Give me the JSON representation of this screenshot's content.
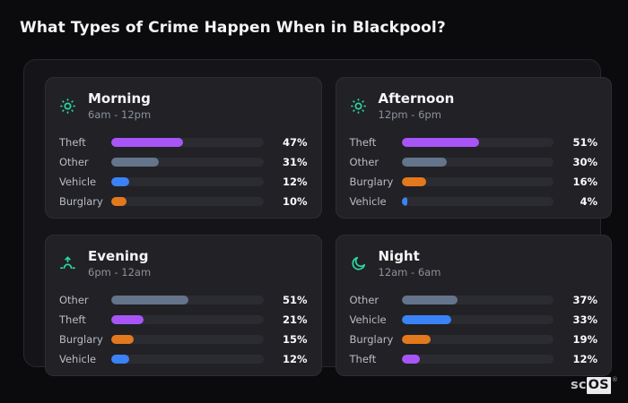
{
  "page_title": "What Types of Crime Happen When in Blackpool?",
  "logo": {
    "prefix": "sc",
    "suffix": "OS",
    "registered": "®"
  },
  "colors": {
    "page_bg": "#0b0b0e",
    "panel_bg": "#151519",
    "card_bg": "#212126",
    "track_bg": "#2b2b32",
    "accent_icon": "#2dd4a0",
    "theft": "#a855f7",
    "other": "#64748b",
    "vehicle": "#3b82f6",
    "burglary": "#e2791d"
  },
  "cards": [
    {
      "title": "Morning",
      "time_range": "6am - 12pm",
      "icon": "sun-icon",
      "bars": [
        {
          "label": "Theft",
          "value": 47,
          "display": "47%",
          "color": "#a855f7"
        },
        {
          "label": "Other",
          "value": 31,
          "display": "31%",
          "color": "#64748b"
        },
        {
          "label": "Vehicle",
          "value": 12,
          "display": "12%",
          "color": "#3b82f6"
        },
        {
          "label": "Burglary",
          "value": 10,
          "display": "10%",
          "color": "#e2791d"
        }
      ]
    },
    {
      "title": "Afternoon",
      "time_range": "12pm - 6pm",
      "icon": "sun-icon",
      "bars": [
        {
          "label": "Theft",
          "value": 51,
          "display": "51%",
          "color": "#a855f7"
        },
        {
          "label": "Other",
          "value": 30,
          "display": "30%",
          "color": "#64748b"
        },
        {
          "label": "Burglary",
          "value": 16,
          "display": "16%",
          "color": "#e2791d"
        },
        {
          "label": "Vehicle",
          "value": 4,
          "display": "4%",
          "color": "#3b82f6"
        }
      ]
    },
    {
      "title": "Evening",
      "time_range": "6pm - 12am",
      "icon": "sunrise-icon",
      "bars": [
        {
          "label": "Other",
          "value": 51,
          "display": "51%",
          "color": "#64748b"
        },
        {
          "label": "Theft",
          "value": 21,
          "display": "21%",
          "color": "#a855f7"
        },
        {
          "label": "Burglary",
          "value": 15,
          "display": "15%",
          "color": "#e2791d"
        },
        {
          "label": "Vehicle",
          "value": 12,
          "display": "12%",
          "color": "#3b82f6"
        }
      ]
    },
    {
      "title": "Night",
      "time_range": "12am - 6am",
      "icon": "moon-icon",
      "bars": [
        {
          "label": "Other",
          "value": 37,
          "display": "37%",
          "color": "#64748b"
        },
        {
          "label": "Vehicle",
          "value": 33,
          "display": "33%",
          "color": "#3b82f6"
        },
        {
          "label": "Burglary",
          "value": 19,
          "display": "19%",
          "color": "#e2791d"
        },
        {
          "label": "Theft",
          "value": 12,
          "display": "12%",
          "color": "#a855f7"
        }
      ]
    }
  ],
  "chart_data": [
    {
      "type": "bar",
      "orientation": "horizontal",
      "title": "Morning",
      "subtitle": "6am - 12pm",
      "categories": [
        "Theft",
        "Other",
        "Vehicle",
        "Burglary"
      ],
      "values": [
        47,
        31,
        12,
        10
      ],
      "unit": "%",
      "xlim": [
        0,
        100
      ],
      "grid": false,
      "legend": false
    },
    {
      "type": "bar",
      "orientation": "horizontal",
      "title": "Afternoon",
      "subtitle": "12pm - 6pm",
      "categories": [
        "Theft",
        "Other",
        "Burglary",
        "Vehicle"
      ],
      "values": [
        51,
        30,
        16,
        4
      ],
      "unit": "%",
      "xlim": [
        0,
        100
      ],
      "grid": false,
      "legend": false
    },
    {
      "type": "bar",
      "orientation": "horizontal",
      "title": "Evening",
      "subtitle": "6pm - 12am",
      "categories": [
        "Other",
        "Theft",
        "Burglary",
        "Vehicle"
      ],
      "values": [
        51,
        21,
        15,
        12
      ],
      "unit": "%",
      "xlim": [
        0,
        100
      ],
      "grid": false,
      "legend": false
    },
    {
      "type": "bar",
      "orientation": "horizontal",
      "title": "Night",
      "subtitle": "12am - 6am",
      "categories": [
        "Other",
        "Vehicle",
        "Burglary",
        "Theft"
      ],
      "values": [
        37,
        33,
        19,
        12
      ],
      "unit": "%",
      "xlim": [
        0,
        100
      ],
      "grid": false,
      "legend": false
    }
  ]
}
